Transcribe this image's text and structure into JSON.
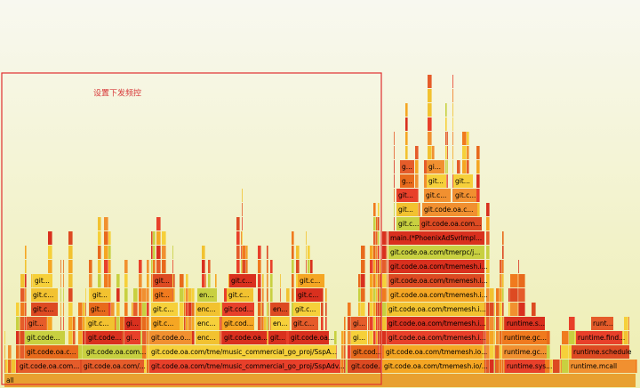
{
  "annotation": "设置下发频控",
  "frames": [
    {
      "label": "all"
    },
    {
      "label": "git.code.oa.com..."
    },
    {
      "label": "git.code.oa.com/..."
    },
    {
      "label": "git.code.oa.com/tme/music_commercial_go_proj/SspAdv..."
    },
    {
      "label": "git.code..."
    },
    {
      "label": "git.code.oa.com/tmemesh.io/..."
    },
    {
      "label": "runtime.sys..."
    },
    {
      "label": "runtime.mcall"
    },
    {
      "label": "git.code.oa.c..."
    },
    {
      "label": "git.code.oa.com..."
    },
    {
      "label": "git.code.oa.com/tme/music_commercial_go_proj/SspA..."
    },
    {
      "label": "git.cod..."
    },
    {
      "label": "git.code.oa.com/tmemesh.io..."
    },
    {
      "label": "runtime.gc..."
    },
    {
      "label": "runtime.schedule"
    },
    {
      "label": "git.code..."
    },
    {
      "label": "git.code..."
    },
    {
      "label": "gi..."
    },
    {
      "label": "git.code.o..."
    },
    {
      "label": "enc..."
    },
    {
      "label": "git.code.oa..."
    },
    {
      "label": "git..."
    },
    {
      "label": "git.code.oa..."
    },
    {
      "label": "gi..."
    },
    {
      "label": "git.code.oa.com/tmemesh.i..."
    },
    {
      "label": "runtime.gc..."
    },
    {
      "label": "runtime.find..."
    },
    {
      "label": "git..."
    },
    {
      "label": "git.c..."
    },
    {
      "label": "gi..."
    },
    {
      "label": "git.c..."
    },
    {
      "label": "enc..."
    },
    {
      "label": "git.cod..."
    },
    {
      "label": "en..."
    },
    {
      "label": "git.c..."
    },
    {
      "label": "gi..."
    },
    {
      "label": "git.code.oa.com/tmemesh.i..."
    },
    {
      "label": "runtime.s..."
    },
    {
      "label": "runt..."
    },
    {
      "label": "git.c..."
    },
    {
      "label": "git..."
    },
    {
      "label": "git.c..."
    },
    {
      "label": "enc..."
    },
    {
      "label": "git.cod..."
    },
    {
      "label": "en..."
    },
    {
      "label": "git.c..."
    },
    {
      "label": "git.code.oa.com/tmemesh.i..."
    },
    {
      "label": "git.c..."
    },
    {
      "label": "git..."
    },
    {
      "label": "git..."
    },
    {
      "label": "en..."
    },
    {
      "label": "git.c..."
    },
    {
      "label": "git.c..."
    },
    {
      "label": "git.code.oa.com/tmemesh.i..."
    },
    {
      "label": "git..."
    },
    {
      "label": "git..."
    },
    {
      "label": "git.c..."
    },
    {
      "label": "git.c..."
    },
    {
      "label": "git.code.oa.com/tmemesh.i..."
    },
    {
      "label": "git.code.oa.com/tmemesh.i..."
    },
    {
      "label": "git.code.oa.com/tmerpc/j..."
    },
    {
      "label": "main.(*PhoenixAdSvrImpl..."
    },
    {
      "label": "git.c..."
    },
    {
      "label": "git.code.oa.com..."
    },
    {
      "label": "git..."
    },
    {
      "label": "git.code.oa.c..."
    },
    {
      "label": "git..."
    },
    {
      "label": "git.c..."
    },
    {
      "label": "git.c..."
    },
    {
      "label": "g..."
    },
    {
      "label": "git..."
    },
    {
      "label": "git..."
    },
    {
      "label": "g..."
    },
    {
      "label": "gi..."
    }
  ]
}
